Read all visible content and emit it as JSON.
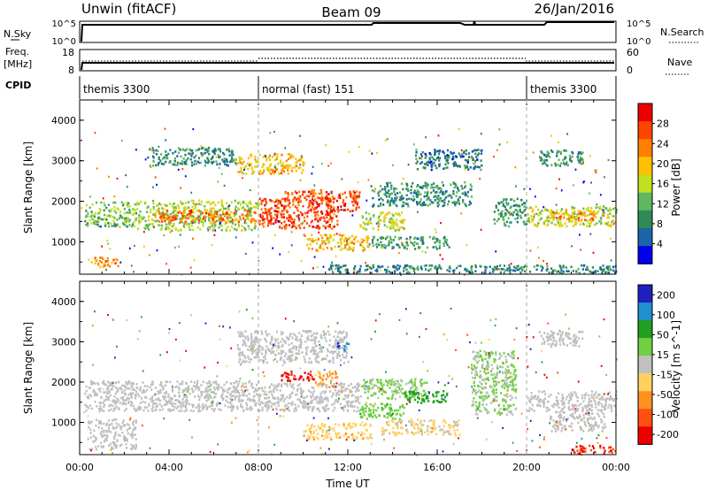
{
  "header": {
    "title_left": "Unwin (fitACF)",
    "title_center": "Beam 09",
    "title_right": "26/Jan/2016"
  },
  "nsky_panel": {
    "left_label": "N.Sky",
    "right_label": "N.Search",
    "left_ticks": [
      "10^5",
      "10^0"
    ],
    "right_ticks": [
      "10^5",
      "10^0"
    ]
  },
  "freq_panel": {
    "left_label_1": "Freq.",
    "left_label_2": "[MHz]",
    "left_ticks": [
      "18",
      "8"
    ],
    "right_label": "Nave",
    "right_ticks": [
      "60",
      "0"
    ]
  },
  "cpid_panel": {
    "label": "CPID",
    "segments": [
      {
        "start": 0,
        "end": 8,
        "name": "themis 3300"
      },
      {
        "start": 8,
        "end": 20,
        "name": "normal (fast) 151"
      },
      {
        "start": 20,
        "end": 24,
        "name": "themis 3300"
      }
    ]
  },
  "colors": {
    "power_scale": [
      "#0000ee",
      "#1c64a8",
      "#2e8b57",
      "#5fb85f",
      "#c0e020",
      "#ffc000",
      "#ff8000",
      "#ff4400",
      "#ee0000"
    ],
    "velocity_scale": [
      "#2020c0",
      "#1e90d0",
      "#20a020",
      "#70d040",
      "#c0c0c0",
      "#ffd060",
      "#ff9020",
      "#ff5010",
      "#ee0000"
    ]
  },
  "chart_data": [
    {
      "type": "heatmap",
      "name": "power-panel",
      "xlabel": "",
      "ylabel": "Slant Range [km]",
      "xlim": [
        0,
        24
      ],
      "ylim": [
        200,
        4500
      ],
      "yticks": [
        1000,
        2000,
        3000,
        4000
      ],
      "colorbar": {
        "label": "Power [dB]",
        "min": 0,
        "max": 32,
        "ticks": [
          4,
          8,
          12,
          16,
          20,
          24,
          28
        ]
      },
      "regions": [
        {
          "t0": 0.2,
          "t1": 2.5,
          "r0": 1400,
          "r1": 2000,
          "v": 13
        },
        {
          "t0": 0.5,
          "t1": 1.7,
          "r0": 400,
          "r1": 650,
          "v": 22
        },
        {
          "t0": 2.5,
          "t1": 8.0,
          "r0": 1300,
          "r1": 2050,
          "v": 15
        },
        {
          "t0": 3.5,
          "t1": 8.0,
          "r0": 1500,
          "r1": 1800,
          "v": 25
        },
        {
          "t0": 8.0,
          "t1": 11.5,
          "r0": 1350,
          "r1": 2100,
          "v": 27
        },
        {
          "t0": 9.0,
          "t1": 11.0,
          "r0": 2000,
          "r1": 2300,
          "v": 26
        },
        {
          "t0": 7.0,
          "t1": 10.0,
          "r0": 2700,
          "r1": 3200,
          "v": 20
        },
        {
          "t0": 3.0,
          "t1": 7.0,
          "r0": 2900,
          "r1": 3350,
          "v": 9
        },
        {
          "t0": 11.0,
          "t1": 12.5,
          "r0": 1750,
          "r1": 2300,
          "v": 27
        },
        {
          "t0": 10.0,
          "t1": 13.0,
          "r0": 800,
          "r1": 1200,
          "v": 20
        },
        {
          "t0": 13.0,
          "t1": 16.5,
          "r0": 850,
          "r1": 1150,
          "v": 10
        },
        {
          "t0": 12.5,
          "t1": 14.5,
          "r0": 1300,
          "r1": 1750,
          "v": 16
        },
        {
          "t0": 13.0,
          "t1": 17.5,
          "r0": 1900,
          "r1": 2500,
          "v": 9
        },
        {
          "t0": 15.0,
          "t1": 18.0,
          "r0": 2800,
          "r1": 3300,
          "v": 7
        },
        {
          "t0": 18.5,
          "t1": 20.0,
          "r0": 1400,
          "r1": 2100,
          "v": 10
        },
        {
          "t0": 20.0,
          "t1": 24.0,
          "r0": 1400,
          "r1": 1900,
          "v": 16
        },
        {
          "t0": 21.0,
          "t1": 23.0,
          "r0": 1550,
          "r1": 1800,
          "v": 23
        },
        {
          "t0": 11.0,
          "t1": 24.0,
          "r0": 250,
          "r1": 450,
          "v": 8
        },
        {
          "t0": 20.5,
          "t1": 22.5,
          "r0": 2900,
          "r1": 3300,
          "v": 10
        }
      ]
    },
    {
      "type": "heatmap",
      "name": "velocity-panel",
      "xlabel": "Time UT",
      "ylabel": "Slant Range [km]",
      "xlim": [
        0,
        24
      ],
      "ylim": [
        200,
        4500
      ],
      "xticks": [
        "00:00",
        "04:00",
        "08:00",
        "12:00",
        "16:00",
        "20:00",
        "00:00"
      ],
      "yticks": [
        1000,
        2000,
        3000,
        4000
      ],
      "colorbar": {
        "label": "Velocity [m s^-1]",
        "min": -250,
        "max": 250,
        "ticks": [
          "200",
          "100",
          "50",
          "15",
          "-15",
          "-50",
          "-100",
          "-200"
        ]
      },
      "regions": [
        {
          "t0": 0.2,
          "t1": 8.0,
          "r0": 1300,
          "r1": 2050,
          "v": 0
        },
        {
          "t0": 0.3,
          "t1": 2.5,
          "r0": 350,
          "r1": 1100,
          "v": 0
        },
        {
          "t0": 8.0,
          "t1": 12.5,
          "r0": 1300,
          "r1": 2000,
          "v": 0
        },
        {
          "t0": 7.0,
          "t1": 12.0,
          "r0": 2500,
          "r1": 3300,
          "v": 0
        },
        {
          "t0": 9.0,
          "t1": 10.5,
          "r0": 2050,
          "r1": 2300,
          "v": -210
        },
        {
          "t0": 10.5,
          "t1": 11.5,
          "r0": 1900,
          "r1": 2300,
          "v": -90
        },
        {
          "t0": 12.5,
          "t1": 15.5,
          "r0": 1600,
          "r1": 2100,
          "v": 40
        },
        {
          "t0": 14.5,
          "t1": 16.5,
          "r0": 1500,
          "r1": 1800,
          "v": 110
        },
        {
          "t0": 12.5,
          "t1": 14.5,
          "r0": 1100,
          "r1": 1500,
          "v": 60
        },
        {
          "t0": 13.5,
          "t1": 17.0,
          "r0": 700,
          "r1": 1100,
          "v": -40
        },
        {
          "t0": 10.0,
          "t1": 13.0,
          "r0": 600,
          "r1": 1000,
          "v": -60
        },
        {
          "t0": 17.5,
          "t1": 19.5,
          "r0": 1200,
          "r1": 2800,
          "v": 30
        },
        {
          "t0": 20.0,
          "t1": 24.0,
          "r0": 1300,
          "r1": 1800,
          "v": 0
        },
        {
          "t0": 21.0,
          "t1": 23.5,
          "r0": 800,
          "r1": 1300,
          "v": 0
        },
        {
          "t0": 11.5,
          "t1": 12.0,
          "r0": 2800,
          "r1": 3000,
          "v": 180
        },
        {
          "t0": 22.0,
          "t1": 24.0,
          "r0": 250,
          "r1": 450,
          "v": -200
        },
        {
          "t0": 20.5,
          "t1": 22.5,
          "r0": 2900,
          "r1": 3300,
          "v": 10
        }
      ]
    }
  ]
}
